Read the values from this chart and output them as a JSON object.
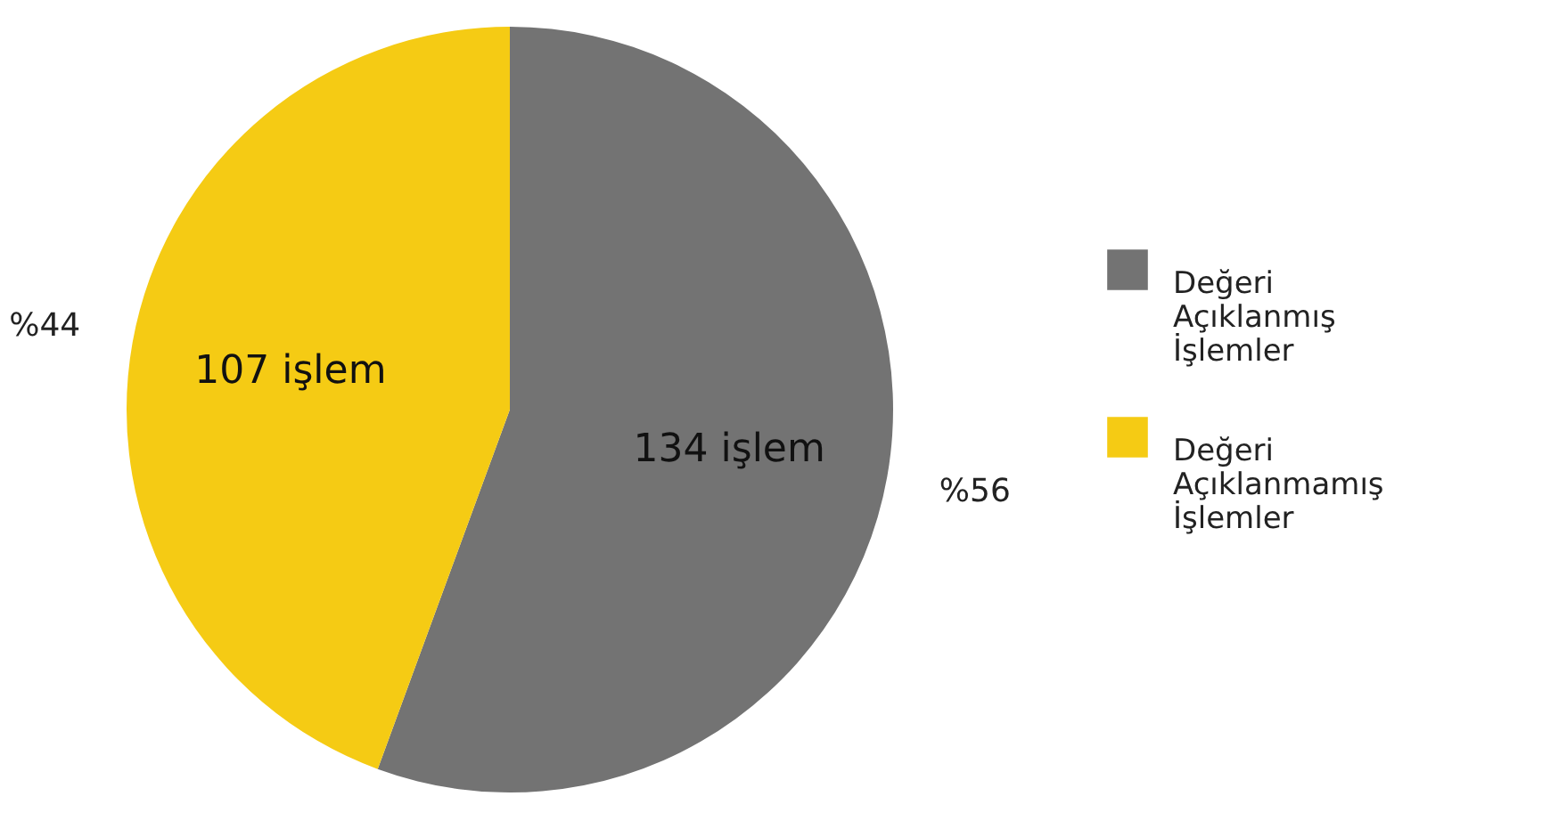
{
  "chart_data": {
    "type": "pie",
    "categories": [
      "Değeri Açıklanmış İşlemler",
      "Değeri Açıklanmamış İşlemler"
    ],
    "values": [
      134,
      107
    ],
    "colors": [
      "#737373",
      "#f5cb14"
    ],
    "value_labels": [
      "134 işlem",
      "107 işlem"
    ],
    "annotations": [
      "%56",
      "%44"
    ],
    "legend": "right"
  }
}
